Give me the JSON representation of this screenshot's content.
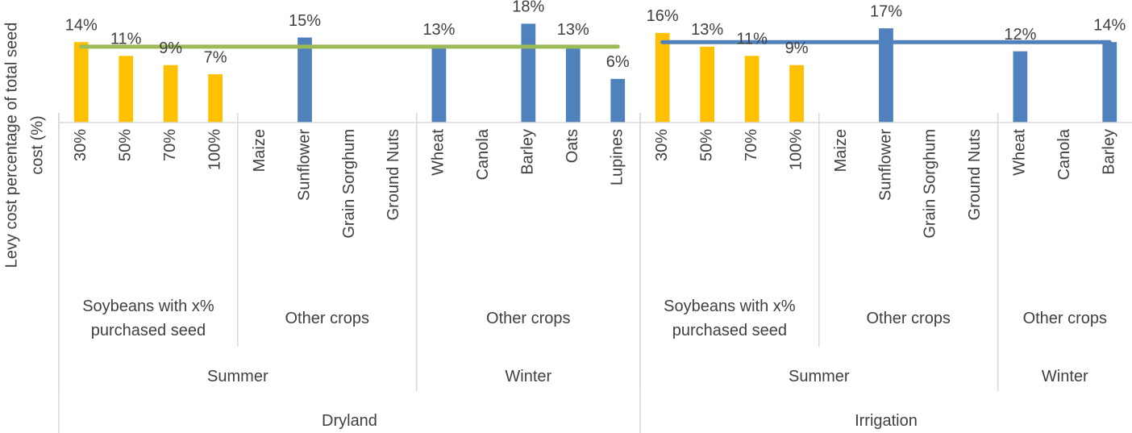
{
  "chart_data": {
    "type": "bar",
    "ylabel": [
      "Levy cost percentage of total seed",
      "cost  (%)"
    ],
    "ylim": [
      -3.5,
      20
    ],
    "groups": [
      {
        "label": "Dryland",
        "line": {
          "value": 13,
          "color": "#9bbb59"
        },
        "groups": [
          {
            "label": "Summer",
            "groups": [
              {
                "label": "Soybeans with x% purchased seed",
                "color": "#ffc000",
                "categories": [
                  "30%",
                  "50%",
                  "70%",
                  "100%"
                ],
                "values": [
                  14,
                  11,
                  9,
                  7
                ],
                "value_labels": [
                  "14%",
                  "11%",
                  "9%",
                  "7%"
                ]
              },
              {
                "label": "Other crops",
                "color": "#4f81bd",
                "categories": [
                  "Maize",
                  "Sunflower",
                  "Grain Sorghum",
                  "Ground Nuts"
                ],
                "values": [
                  null,
                  15,
                  null,
                  null
                ],
                "value_labels": [
                  null,
                  "15%",
                  null,
                  null
                ]
              }
            ]
          },
          {
            "label": "Winter",
            "groups": [
              {
                "label": "Other crops",
                "color": "#4f81bd",
                "categories": [
                  "Wheat",
                  "Canola",
                  "Barley",
                  "Oats",
                  "Lupines"
                ],
                "values": [
                  13,
                  null,
                  18,
                  13,
                  6
                ],
                "value_labels": [
                  "13%",
                  null,
                  "18%",
                  "13%",
                  "6%"
                ]
              }
            ]
          }
        ]
      },
      {
        "label": "Irrigation",
        "line": {
          "value": 14,
          "color": "#4f81bd"
        },
        "groups": [
          {
            "label": "Summer",
            "groups": [
              {
                "label": "Soybeans with x% purchased seed",
                "color": "#ffc000",
                "categories": [
                  "30%",
                  "50%",
                  "70%",
                  "100%"
                ],
                "values": [
                  16,
                  13,
                  11,
                  9
                ],
                "value_labels": [
                  "16%",
                  "13%",
                  "11%",
                  "9%"
                ]
              },
              {
                "label": "Other crops",
                "color": "#4f81bd",
                "categories": [
                  "Maize",
                  "Sunflower",
                  "Grain Sorghum",
                  "Ground Nuts"
                ],
                "values": [
                  null,
                  17,
                  null,
                  null
                ],
                "value_labels": [
                  null,
                  "17%",
                  null,
                  null
                ]
              }
            ]
          },
          {
            "label": "Winter",
            "groups": [
              {
                "label": "Other crops",
                "color": "#4f81bd",
                "categories": [
                  "Wheat",
                  "Canola",
                  "Barley"
                ],
                "values": [
                  12,
                  null,
                  14
                ],
                "value_labels": [
                  "12%",
                  null,
                  "14%"
                ]
              }
            ]
          }
        ]
      }
    ]
  }
}
